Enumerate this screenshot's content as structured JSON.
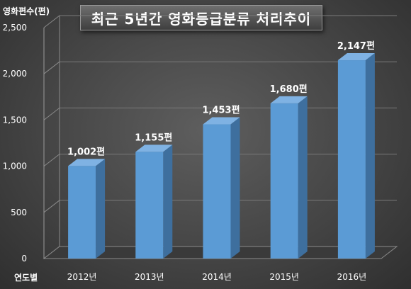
{
  "chart_data": {
    "type": "bar",
    "title": "최근 5년간 영화등급분류 처리추이",
    "ylabel": "영화편수(편)",
    "xlabel": "연도별",
    "categories": [
      "2012년",
      "2013년",
      "2014년",
      "2015년",
      "2016년"
    ],
    "values": [
      1002,
      1155,
      1453,
      1680,
      2147
    ],
    "data_labels": [
      "1,002편",
      "1,155편",
      "1,453편",
      "1,680편",
      "2,147편"
    ],
    "ylim": [
      0,
      2500
    ],
    "yticks": [
      0,
      500,
      1000,
      1500,
      2000,
      2500
    ],
    "ytick_labels": [
      "0",
      "500",
      "1,000",
      "1,500",
      "2,000",
      "2,500"
    ],
    "grid": true,
    "bar_color": "#5b9bd5",
    "bar_side_color": "#3e6f9e",
    "bar_top_color": "#7fb2e3",
    "background_color": "#4a4a4a"
  }
}
